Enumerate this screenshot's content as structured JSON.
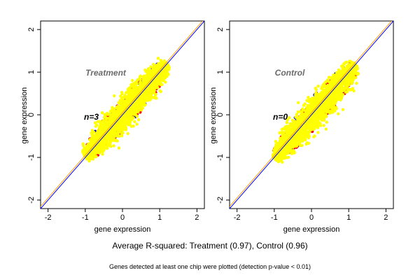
{
  "captions": {
    "summary": "Average R-squared: Treatment (0.97), Control (0.96)",
    "note": "Genes detected at least one chip were plotted (detection p-value < 0.01)"
  },
  "colors": {
    "points_main": "#ffff00",
    "points_outlier_red": "#ff0000",
    "points_outlier_blue": "#0000cc",
    "line_identity": "#0000ff",
    "line_fit": "#ffa500"
  },
  "chart_data": [
    {
      "type": "scatter",
      "title": "Treatment",
      "annotation": "n=3",
      "xlabel": "gene expression",
      "ylabel": "gene expression",
      "xlim": [
        -2.2,
        2.2
      ],
      "ylim": [
        -2.2,
        2.2
      ],
      "xticks": [
        -2,
        -1,
        0,
        1,
        2
      ],
      "yticks": [
        -2,
        -1,
        0,
        1,
        2
      ],
      "grid": false,
      "cloud": {
        "x_range": [
          -1.0,
          1.2
        ],
        "y_range": [
          -1.05,
          1.25
        ],
        "correlation": 0.97
      },
      "lines": [
        {
          "name": "identity",
          "slope": 1.0,
          "intercept": 0.0,
          "color": "#0000ff"
        },
        {
          "name": "fit",
          "slope": 1.0,
          "intercept": 0.05,
          "color": "#ffa500"
        }
      ]
    },
    {
      "type": "scatter",
      "title": "Control",
      "annotation": "n=0",
      "xlabel": "gene expression",
      "ylabel": "gene expression",
      "xlim": [
        -2.2,
        2.2
      ],
      "ylim": [
        -2.2,
        2.2
      ],
      "xticks": [
        -2,
        -1,
        0,
        1,
        2
      ],
      "yticks": [
        -2,
        -1,
        0,
        1,
        2
      ],
      "grid": false,
      "cloud": {
        "x_range": [
          -1.0,
          1.2
        ],
        "y_range": [
          -1.1,
          1.25
        ],
        "correlation": 0.96
      },
      "lines": [
        {
          "name": "identity",
          "slope": 1.0,
          "intercept": 0.0,
          "color": "#0000ff"
        },
        {
          "name": "fit",
          "slope": 1.0,
          "intercept": 0.05,
          "color": "#ffa500"
        }
      ]
    }
  ]
}
